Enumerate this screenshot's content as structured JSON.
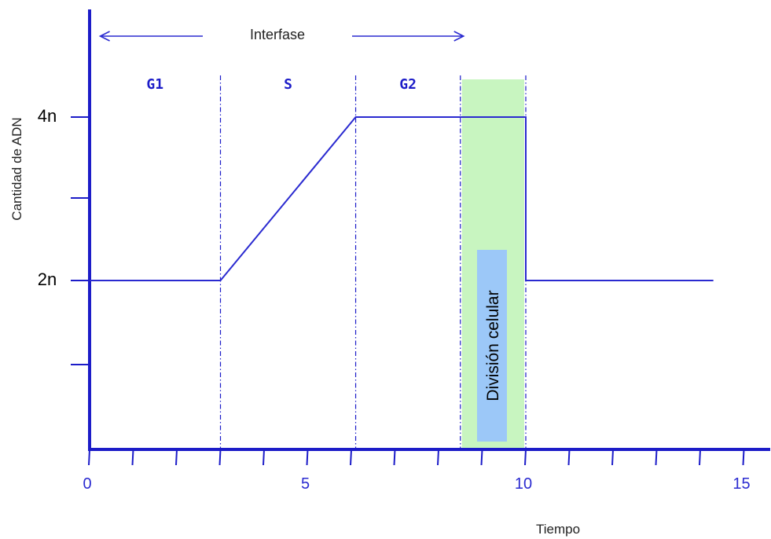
{
  "chart_data": {
    "type": "line",
    "xlabel": "Tiempo",
    "ylabel": "Cantidad de ADN",
    "xlim": [
      0,
      15
    ],
    "x_ticks": [
      0,
      5,
      10,
      15
    ],
    "y_levels": [
      {
        "label": "2n",
        "value": 2
      },
      {
        "label": "4n",
        "value": 4
      }
    ],
    "series": [
      {
        "x": [
          0,
          3,
          6.1,
          10,
          10,
          14.3
        ],
        "y": [
          2,
          2,
          4,
          4,
          2,
          2
        ]
      }
    ],
    "phases": [
      {
        "label": "G1",
        "start": 0,
        "end": 3
      },
      {
        "label": "S",
        "start": 3,
        "end": 6.1
      },
      {
        "label": "G2",
        "start": 6.1,
        "end": 8.5
      }
    ],
    "interphase": {
      "label": "Interfase",
      "start": 0.1,
      "end": 8.5
    },
    "division": {
      "label": "División celular",
      "start": 8.5,
      "end": 10,
      "fill": "#c8f5c0",
      "label_fill": "#9cc8f8"
    },
    "colors": {
      "axis": "#1c1cc8",
      "trace": "#2a2ad0"
    }
  }
}
